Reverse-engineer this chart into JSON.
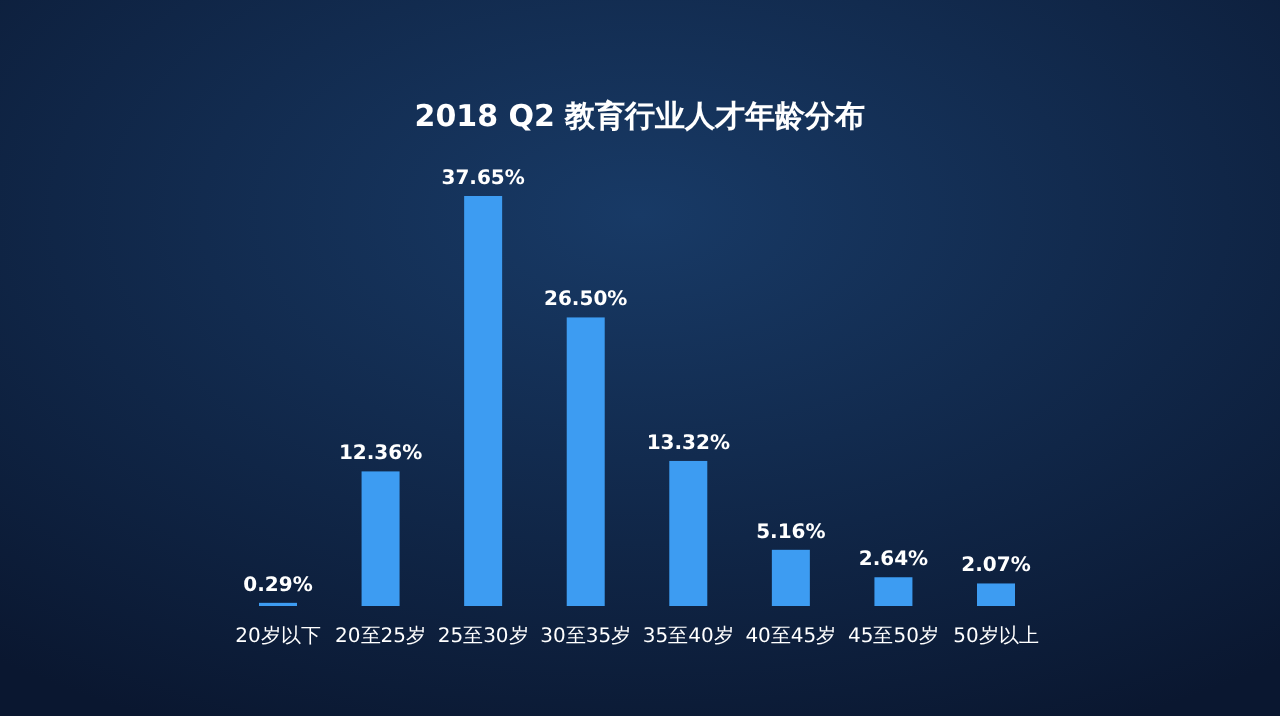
{
  "chart_data": {
    "type": "bar",
    "title": "2018 Q2 教育行业人才年龄分布",
    "categories": [
      "20岁以下",
      "20至25岁",
      "25至30岁",
      "30至35岁",
      "35至40岁",
      "40至45岁",
      "45至50岁",
      "50岁以上"
    ],
    "values": [
      0.29,
      12.36,
      37.65,
      26.5,
      13.32,
      5.16,
      2.64,
      2.07
    ],
    "value_labels": [
      "0.29%",
      "12.36%",
      "37.65%",
      "26.50%",
      "13.32%",
      "5.16%",
      "2.64%",
      "2.07%"
    ],
    "color": "#3d9cf2"
  }
}
